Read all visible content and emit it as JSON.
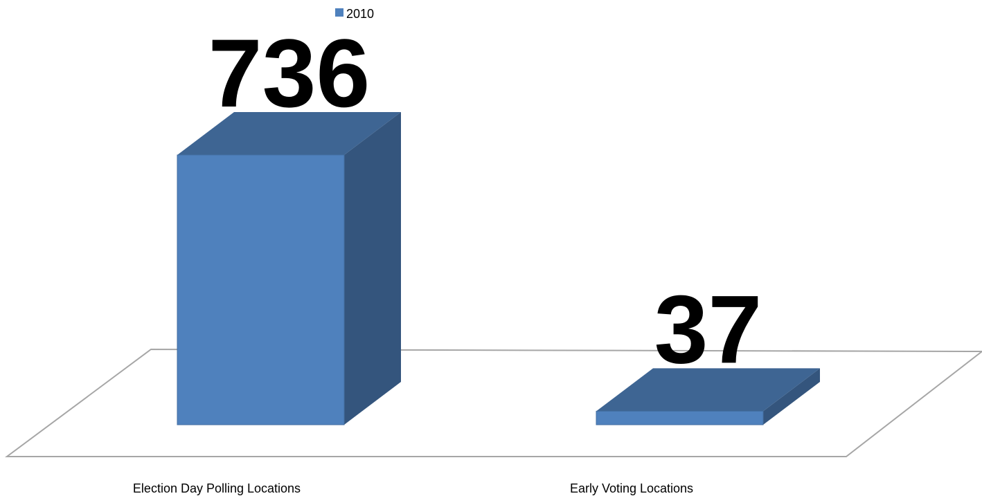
{
  "chart_data": {
    "type": "bar3d",
    "categories": [
      "Election Day Polling Locations",
      "Early Voting Locations"
    ],
    "series": [
      {
        "name": "2010",
        "color": "#4f81bd",
        "values": [
          736,
          37
        ]
      }
    ],
    "legend": "top"
  }
}
